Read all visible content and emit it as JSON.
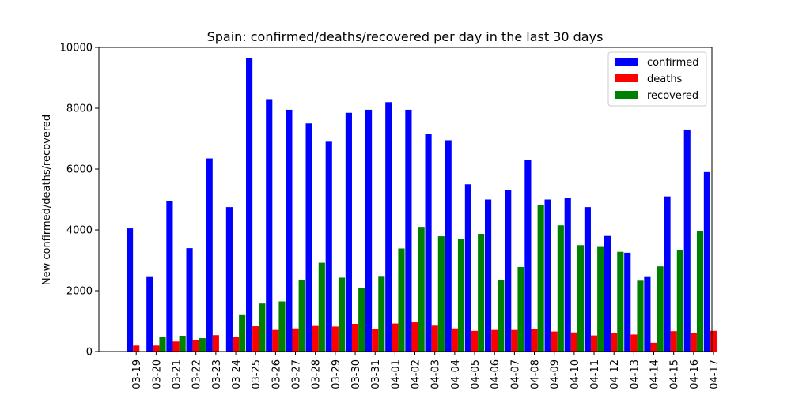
{
  "chart_data": {
    "type": "bar",
    "title": "Spain: confirmed/deaths/recovered per day in the last 30 days",
    "xlabel": "",
    "ylabel": "New confirmed/deaths/recovered",
    "ylim": [
      0,
      10000
    ],
    "yticks": [
      0,
      2000,
      4000,
      6000,
      8000,
      10000
    ],
    "ytick_labels": [
      "0",
      "2000",
      "4000",
      "6000",
      "8000",
      "10000"
    ],
    "grid": false,
    "legend_position": "top-right",
    "categories": [
      "03-19",
      "03-20",
      "03-21",
      "03-22",
      "03-23",
      "03-24",
      "03-25",
      "03-26",
      "03-27",
      "03-28",
      "03-29",
      "03-30",
      "03-31",
      "04-01",
      "04-02",
      "04-03",
      "04-04",
      "04-05",
      "04-06",
      "04-07",
      "04-08",
      "04-09",
      "04-10",
      "04-11",
      "04-12",
      "04-13",
      "04-14",
      "04-15",
      "04-16",
      "04-17"
    ],
    "series": [
      {
        "name": "confirmed",
        "color": "#0000ff",
        "values": [
          4050,
          2450,
          4950,
          3400,
          6350,
          4750,
          9650,
          8300,
          7950,
          7500,
          6900,
          7850,
          7950,
          8200,
          7950,
          7150,
          6950,
          5500,
          5000,
          5300,
          6300,
          5000,
          5050,
          4750,
          3800,
          3250,
          2450,
          5100,
          7300,
          5900
        ]
      },
      {
        "name": "deaths",
        "color": "#ff0000",
        "values": [
          200,
          200,
          330,
          390,
          540,
          490,
          830,
          710,
          760,
          840,
          820,
          910,
          750,
          920,
          960,
          850,
          760,
          680,
          710,
          710,
          730,
          660,
          630,
          530,
          610,
          560,
          290,
          670,
          600,
          680
        ]
      },
      {
        "name": "recovered",
        "color": "#008000",
        "values": [
          0,
          470,
          520,
          440,
          0,
          1200,
          1580,
          1650,
          2350,
          2920,
          2430,
          2080,
          2460,
          3390,
          4100,
          3790,
          3700,
          3870,
          2360,
          2780,
          4820,
          4150,
          3500,
          3440,
          3280,
          2330,
          2800,
          3350,
          3950,
          0
        ]
      }
    ]
  }
}
